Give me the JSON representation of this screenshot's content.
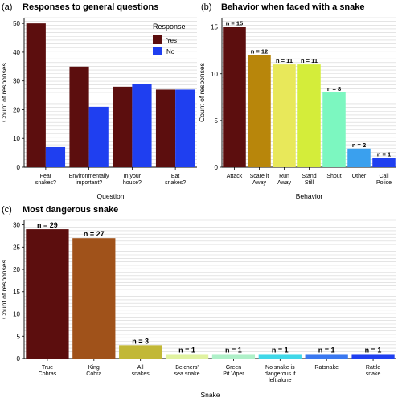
{
  "figure": {
    "panel_a": {
      "tag": "(a)",
      "title": "Responses to general questions"
    },
    "panel_b": {
      "tag": "(b)",
      "title": "Behavior when faced with a snake"
    },
    "panel_c": {
      "tag": "(c)",
      "title": "Most dangerous snake"
    }
  },
  "chart_data": [
    {
      "id": "a",
      "type": "bar",
      "title": "Responses to general questions",
      "xlabel": "Question",
      "ylabel": "Count of responses",
      "ylim": [
        0,
        52
      ],
      "yticks": [
        0,
        10,
        20,
        30,
        40,
        50
      ],
      "categories": [
        [
          "Fear",
          "snakes?"
        ],
        [
          "Environmentally",
          "important?"
        ],
        [
          "In your",
          "house?"
        ],
        [
          "Eat",
          "snakes?"
        ]
      ],
      "legend": {
        "title": "Response",
        "position": "top-right"
      },
      "series": [
        {
          "name": "Yes",
          "color": "#5c0e0e",
          "values": [
            50,
            35,
            28,
            27
          ]
        },
        {
          "name": "No",
          "color": "#1f3ff0",
          "values": [
            7,
            21,
            29,
            27
          ]
        }
      ],
      "grid": true
    },
    {
      "id": "b",
      "type": "bar",
      "title": "Behavior when faced with a snake",
      "xlabel": "Behavior",
      "ylabel": "Count of responses",
      "ylim": [
        0,
        16
      ],
      "yticks": [
        0,
        5,
        10,
        15
      ],
      "categories": [
        [
          "Attack"
        ],
        [
          "Scare it",
          "Away"
        ],
        [
          "Run",
          "Away"
        ],
        [
          "Stand",
          "Still"
        ],
        [
          "Shout"
        ],
        [
          "Other"
        ],
        [
          "Call",
          "Police"
        ]
      ],
      "values": [
        15,
        12,
        11,
        11,
        8,
        2,
        1
      ],
      "labels": [
        "n = 15",
        "n = 12",
        "n = 11",
        "n = 11",
        "n = 8",
        "n = 2",
        "n = 1"
      ],
      "colors": [
        "#5c0e0e",
        "#b8860b",
        "#e8e85a",
        "#d4ed3a",
        "#7cf7c0",
        "#3aa0ee",
        "#1f3ff0"
      ],
      "grid": true
    },
    {
      "id": "c",
      "type": "bar",
      "title": "Most dangerous snake",
      "xlabel": "Snake",
      "ylabel": "Count of responses",
      "ylim": [
        0,
        31
      ],
      "yticks": [
        0,
        5,
        10,
        15,
        20,
        25,
        30
      ],
      "categories": [
        [
          "True",
          "Cobras"
        ],
        [
          "King",
          "Cobra"
        ],
        [
          "All",
          "snakes"
        ],
        [
          "Belchers'",
          "sea snake"
        ],
        [
          "Green",
          "Pit Viper"
        ],
        [
          "No snake is",
          "dangerous if",
          "left alone"
        ],
        [
          "Ratsnake"
        ],
        [
          "Rattle",
          "snake"
        ]
      ],
      "values": [
        29,
        27,
        3,
        1,
        1,
        1,
        1,
        1
      ],
      "labels": [
        "n = 29",
        "n = 27",
        "n = 3",
        "n = 1",
        "n = 1",
        "n = 1",
        "n = 1",
        "n = 1"
      ],
      "colors": [
        "#5c0e0e",
        "#a0521a",
        "#c2b837",
        "#e0f2a0",
        "#aef0c8",
        "#40d8e8",
        "#3a78f0",
        "#1f3ff0"
      ],
      "grid": true
    }
  ]
}
